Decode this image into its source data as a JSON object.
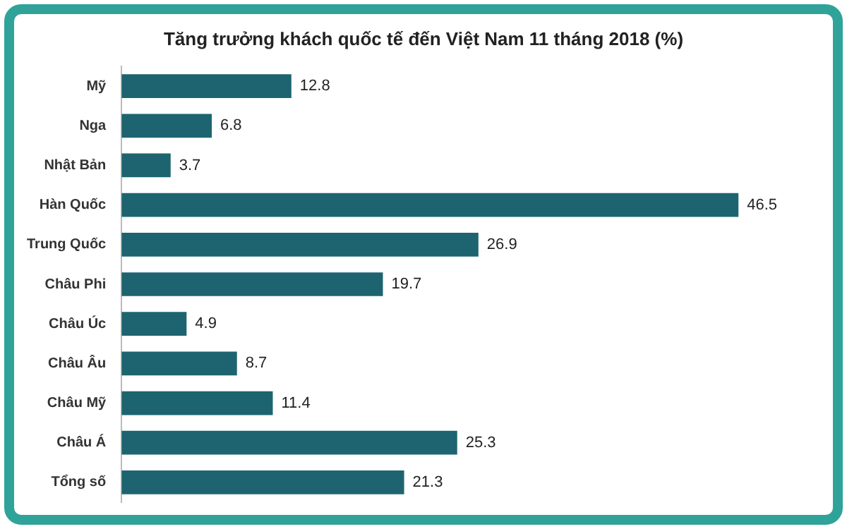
{
  "chart_data": {
    "type": "bar",
    "orientation": "horizontal",
    "title": "Tăng trưởng khách quốc tế đến Việt Nam 11 tháng 2018 (%)",
    "categories": [
      "Mỹ",
      "Nga",
      "Nhật Bản",
      "Hàn Quốc",
      "Trung Quốc",
      "Châu Phi",
      "Châu Úc",
      "Châu Âu",
      "Châu Mỹ",
      "Châu Á",
      "Tổng số"
    ],
    "values": [
      12.8,
      6.8,
      3.7,
      46.5,
      26.9,
      19.7,
      4.9,
      8.7,
      11.4,
      25.3,
      21.3
    ],
    "color": "#1d6470",
    "data_labels": true,
    "legend": false,
    "tick_labels": "y"
  }
}
